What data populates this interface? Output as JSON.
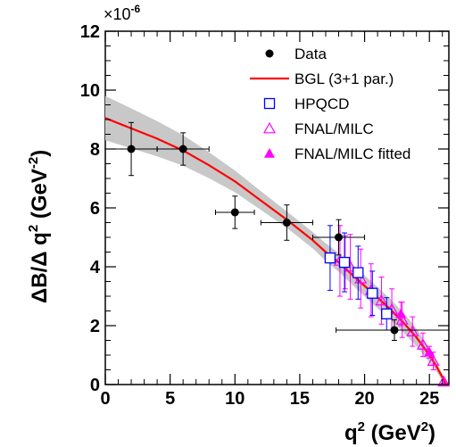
{
  "chart_data": {
    "type": "scatter",
    "xlabel": "q",
    "xlabel_sup": "2",
    "xlabel_unit": " (GeV",
    "xlabel_unit_sup": "2",
    "xlabel_close": ")",
    "ylabel": "ΔB/Δ q",
    "ylabel_sup": "2",
    "ylabel_unit": " (GeV",
    "ylabel_unit_sup": "-2",
    "ylabel_close": ")",
    "y_multiplier_base": "×10",
    "y_multiplier_exp": "-6",
    "xlim": [
      0,
      26.5
    ],
    "ylim": [
      0,
      12
    ],
    "x_ticks": [
      0,
      5,
      10,
      15,
      20,
      25
    ],
    "y_ticks": [
      0,
      2,
      4,
      6,
      8,
      10,
      12
    ],
    "legend_position": "top-right",
    "legend": [
      {
        "label": "Data",
        "marker": "filled-circle",
        "color": "#000000"
      },
      {
        "label": "BGL (3+1 par.)",
        "marker": "line",
        "color": "#ff0000"
      },
      {
        "label": "HPQCD",
        "marker": "open-square",
        "color": "#0000ff"
      },
      {
        "label": "FNAL/MILC",
        "marker": "open-triangle",
        "color": "#ff00ff"
      },
      {
        "label": "FNAL/MILC fitted",
        "marker": "filled-triangle",
        "color": "#ff00ff"
      }
    ],
    "series": [
      {
        "name": "Data",
        "color": "#000000",
        "points": [
          {
            "x": 2,
            "y": 8.0,
            "xerr": 2,
            "yerr": 0.9
          },
          {
            "x": 6,
            "y": 8.0,
            "xerr": 2,
            "yerr": 0.55
          },
          {
            "x": 10,
            "y": 5.85,
            "xerr": 1.5,
            "yerr": 0.55
          },
          {
            "x": 14,
            "y": 5.5,
            "xerr": 2,
            "yerr": 0.6
          },
          {
            "x": 18,
            "y": 5.0,
            "xerr": 2,
            "yerr": 0.6
          },
          {
            "x": 22.3,
            "y": 1.85,
            "xerr": 4.5,
            "yerr": 0.35
          }
        ]
      },
      {
        "name": "BGL (3+1 par.)",
        "color": "#ff0000",
        "curve": [
          {
            "x": 0,
            "y": 9.05
          },
          {
            "x": 2,
            "y": 8.7
          },
          {
            "x": 4,
            "y": 8.35
          },
          {
            "x": 6,
            "y": 7.95
          },
          {
            "x": 8,
            "y": 7.45
          },
          {
            "x": 10,
            "y": 6.9
          },
          {
            "x": 12,
            "y": 6.25
          },
          {
            "x": 14,
            "y": 5.6
          },
          {
            "x": 16,
            "y": 4.9
          },
          {
            "x": 17,
            "y": 4.5
          },
          {
            "x": 18,
            "y": 4.15
          },
          {
            "x": 19,
            "y": 3.75
          },
          {
            "x": 20,
            "y": 3.35
          },
          {
            "x": 21,
            "y": 2.95
          },
          {
            "x": 22,
            "y": 2.55
          },
          {
            "x": 23,
            "y": 2.1
          },
          {
            "x": 24,
            "y": 1.6
          },
          {
            "x": 25,
            "y": 1.0
          },
          {
            "x": 25.5,
            "y": 0.65
          },
          {
            "x": 26,
            "y": 0.25
          },
          {
            "x": 26.3,
            "y": 0
          }
        ],
        "band_half_width": [
          0.75,
          0.68,
          0.6,
          0.52,
          0.44,
          0.37,
          0.32,
          0.28,
          0.28,
          0.3,
          0.32,
          0.34,
          0.36,
          0.36,
          0.35,
          0.34,
          0.3,
          0.24,
          0.18,
          0.1,
          0.05
        ]
      },
      {
        "name": "HPQCD",
        "color": "#0000ff",
        "points": [
          {
            "x": 17.34,
            "y": 4.3,
            "yerr": 1.1
          },
          {
            "x": 18.45,
            "y": 4.15,
            "yerr": 1.0
          },
          {
            "x": 19.5,
            "y": 3.8,
            "yerr": 0.9
          },
          {
            "x": 20.6,
            "y": 3.1,
            "yerr": 0.75
          },
          {
            "x": 21.7,
            "y": 2.4,
            "yerr": 0.55
          }
        ]
      },
      {
        "name": "FNAL/MILC",
        "color": "#ff00ff",
        "points": [
          {
            "x": 18.1,
            "y": 4.2,
            "yerr": 1.2
          },
          {
            "x": 18.9,
            "y": 4.0,
            "yerr": 1.1
          },
          {
            "x": 19.7,
            "y": 3.6,
            "yerr": 1.0
          },
          {
            "x": 20.5,
            "y": 3.2,
            "yerr": 0.9
          },
          {
            "x": 21.3,
            "y": 2.85,
            "yerr": 0.8
          },
          {
            "x": 22.1,
            "y": 2.55,
            "yerr": 0.7
          },
          {
            "x": 22.9,
            "y": 2.2,
            "yerr": 0.6
          },
          {
            "x": 23.7,
            "y": 1.8,
            "yerr": 0.5
          },
          {
            "x": 24.5,
            "y": 1.35,
            "yerr": 0.4
          },
          {
            "x": 25.3,
            "y": 0.8,
            "yerr": 0.3
          },
          {
            "x": 26.1,
            "y": 0.1,
            "yerr": 0.05
          }
        ]
      },
      {
        "name": "FNAL/MILC fitted",
        "color": "#ff00ff",
        "points": [
          {
            "x": 18.5,
            "y": 4.15,
            "yerr": 0.9
          },
          {
            "x": 22.8,
            "y": 2.4,
            "yerr": 0.4
          },
          {
            "x": 25.0,
            "y": 1.1,
            "yerr": 0.2
          }
        ]
      }
    ]
  }
}
